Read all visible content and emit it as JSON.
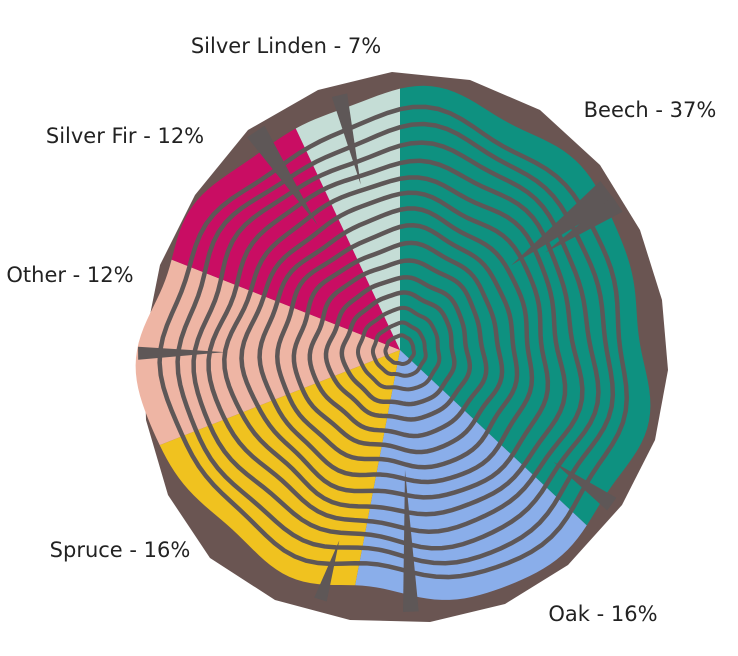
{
  "chart_data": {
    "type": "pie",
    "slices": [
      {
        "label": "Beech",
        "value": 37,
        "display": "Beech - 37%",
        "color": "#0e9180"
      },
      {
        "label": "Oak",
        "value": 16,
        "display": "Oak - 16%",
        "color": "#8aaeea"
      },
      {
        "label": "Spruce",
        "value": 16,
        "display": "Spruce - 16%",
        "color": "#f0c21f"
      },
      {
        "label": "Other",
        "value": 12,
        "display": "Other - 12%",
        "color": "#eeb5a4"
      },
      {
        "label": "Silver Fir",
        "value": 12,
        "display": "Silver Fir - 12%",
        "color": "#c90d63"
      },
      {
        "label": "Silver Linden",
        "value": 7,
        "display": "Silver Linden - 7%",
        "color": "#c5ddd6"
      }
    ],
    "start": "12 o'clock",
    "direction": "clockwise",
    "bark_color": "#6a5552",
    "ring_color": "#5e5757"
  }
}
